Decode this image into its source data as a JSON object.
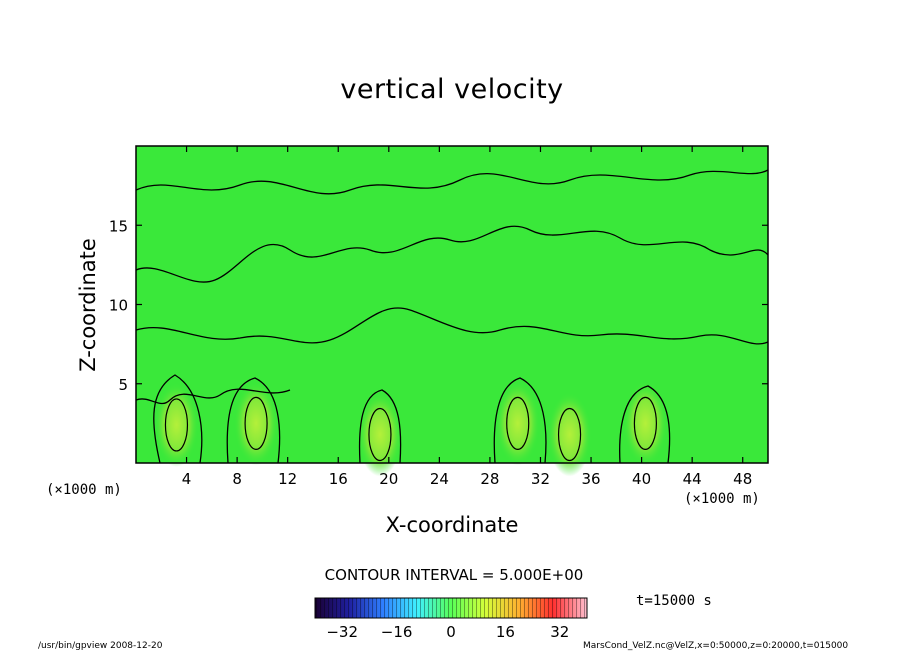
{
  "chart_data": {
    "type": "heatmap",
    "title": "vertical velocity",
    "xlabel": "X-coordinate",
    "ylabel": "Z-coordinate",
    "x_unit_label": "(×1000 m)",
    "xlim": [
      0,
      50
    ],
    "ylim": [
      0,
      20
    ],
    "x_ticks": [
      4,
      8,
      12,
      16,
      20,
      24,
      28,
      32,
      36,
      40,
      44,
      48
    ],
    "y_ticks": [
      5,
      10,
      15
    ],
    "contour_interval_label": "CONTOUR INTERVAL = 5.000E+00",
    "colorbar": {
      "ticks": [
        -32,
        -16,
        0,
        16,
        32
      ],
      "range": [
        -40,
        40
      ],
      "colors": [
        "#1a0033",
        "#1f1fa0",
        "#2f7fff",
        "#3ff0ff",
        "#58ff58",
        "#d4ff3a",
        "#ffb030",
        "#ff3030",
        "#ffc0d0"
      ]
    },
    "field_color": "#3ae83a",
    "updraft_cores": [
      {
        "x": 3.2,
        "z": 2.4
      },
      {
        "x": 9.5,
        "z": 2.5
      },
      {
        "x": 19.3,
        "z": 1.8
      },
      {
        "x": 30.2,
        "z": 2.5
      },
      {
        "x": 34.3,
        "z": 1.8
      },
      {
        "x": 40.3,
        "z": 2.5
      }
    ],
    "time_label": "t=15000 s"
  },
  "footer": {
    "left": "/usr/bin/gpview  2008-12-20",
    "right": "MarsCond_VelZ.nc@VelZ,x=0:50000,z=0:20000,t=015000"
  }
}
